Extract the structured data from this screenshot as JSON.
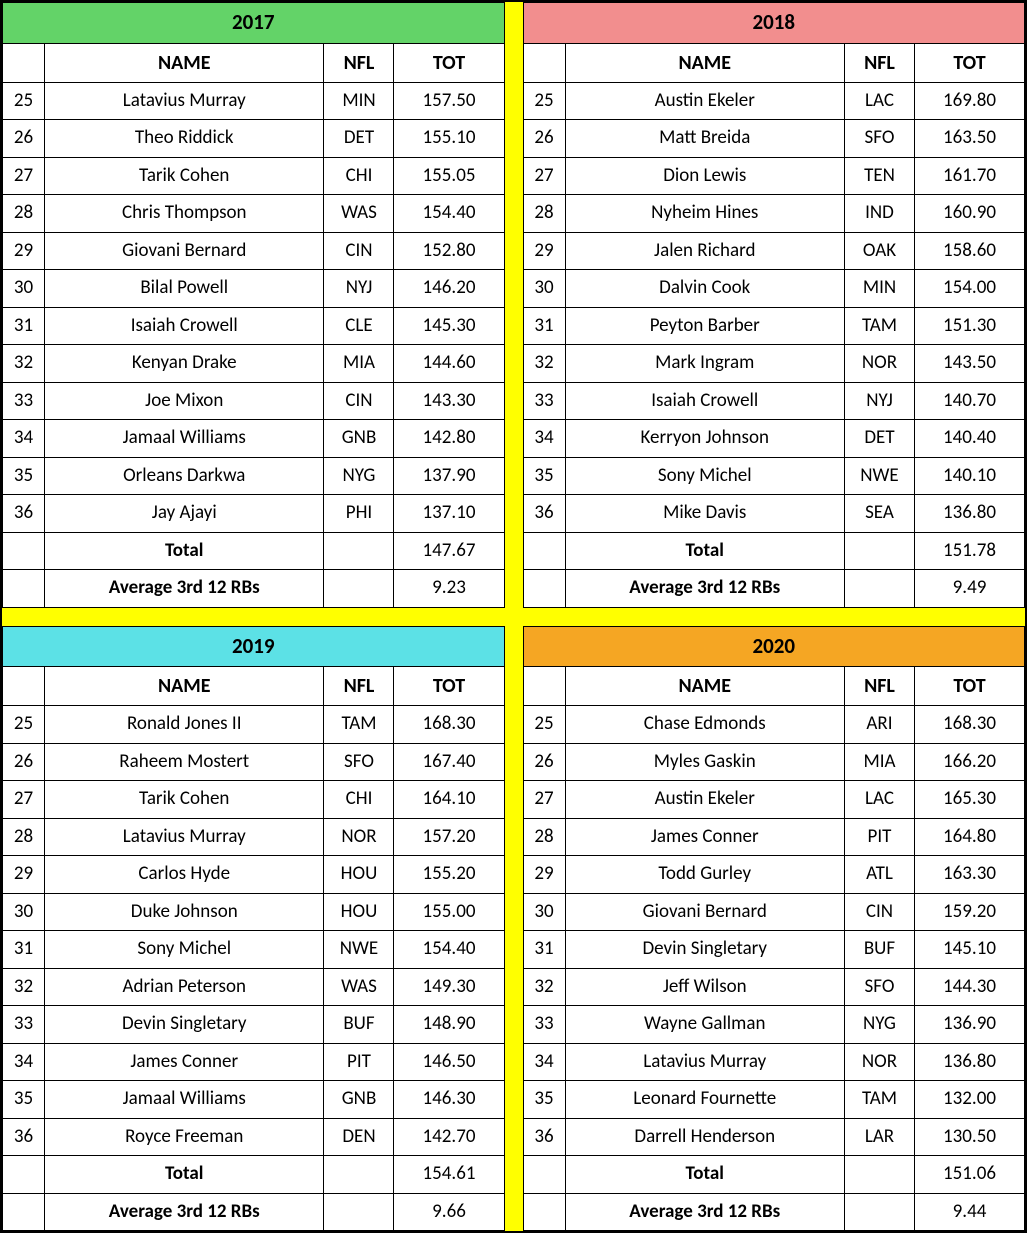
{
  "colors": {
    "gap": "#ffff00",
    "header_2017": "#63d368",
    "header_2018": "#f28e8e",
    "header_2019": "#5ce1e6",
    "header_2020": "#f5a623"
  },
  "labels": {
    "name": "NAME",
    "nfl": "NFL",
    "tot": "TOT",
    "total": "Total",
    "avg": "Average 3rd 12 RBs"
  },
  "panels": {
    "p2017": {
      "year": "2017",
      "rows": [
        {
          "rank": "25",
          "name": "Latavius Murray",
          "nfl": "MIN",
          "tot": "157.50"
        },
        {
          "rank": "26",
          "name": "Theo Riddick",
          "nfl": "DET",
          "tot": "155.10"
        },
        {
          "rank": "27",
          "name": "Tarik Cohen",
          "nfl": "CHI",
          "tot": "155.05"
        },
        {
          "rank": "28",
          "name": "Chris Thompson",
          "nfl": "WAS",
          "tot": "154.40"
        },
        {
          "rank": "29",
          "name": "Giovani Bernard",
          "nfl": "CIN",
          "tot": "152.80"
        },
        {
          "rank": "30",
          "name": "Bilal Powell",
          "nfl": "NYJ",
          "tot": "146.20"
        },
        {
          "rank": "31",
          "name": "Isaiah Crowell",
          "nfl": "CLE",
          "tot": "145.30"
        },
        {
          "rank": "32",
          "name": "Kenyan Drake",
          "nfl": "MIA",
          "tot": "144.60"
        },
        {
          "rank": "33",
          "name": "Joe Mixon",
          "nfl": "CIN",
          "tot": "143.30"
        },
        {
          "rank": "34",
          "name": "Jamaal Williams",
          "nfl": "GNB",
          "tot": "142.80"
        },
        {
          "rank": "35",
          "name": "Orleans Darkwa",
          "nfl": "NYG",
          "tot": "137.90"
        },
        {
          "rank": "36",
          "name": "Jay Ajayi",
          "nfl": "PHI",
          "tot": "137.10"
        }
      ],
      "total": "147.67",
      "avg": "9.23"
    },
    "p2018": {
      "year": "2018",
      "rows": [
        {
          "rank": "25",
          "name": "Austin Ekeler",
          "nfl": "LAC",
          "tot": "169.80"
        },
        {
          "rank": "26",
          "name": "Matt Breida",
          "nfl": "SFO",
          "tot": "163.50"
        },
        {
          "rank": "27",
          "name": "Dion Lewis",
          "nfl": "TEN",
          "tot": "161.70"
        },
        {
          "rank": "28",
          "name": "Nyheim Hines",
          "nfl": "IND",
          "tot": "160.90"
        },
        {
          "rank": "29",
          "name": "Jalen Richard",
          "nfl": "OAK",
          "tot": "158.60"
        },
        {
          "rank": "30",
          "name": "Dalvin Cook",
          "nfl": "MIN",
          "tot": "154.00"
        },
        {
          "rank": "31",
          "name": "Peyton Barber",
          "nfl": "TAM",
          "tot": "151.30"
        },
        {
          "rank": "32",
          "name": "Mark Ingram",
          "nfl": "NOR",
          "tot": "143.50"
        },
        {
          "rank": "33",
          "name": "Isaiah Crowell",
          "nfl": "NYJ",
          "tot": "140.70"
        },
        {
          "rank": "34",
          "name": "Kerryon Johnson",
          "nfl": "DET",
          "tot": "140.40"
        },
        {
          "rank": "35",
          "name": "Sony Michel",
          "nfl": "NWE",
          "tot": "140.10"
        },
        {
          "rank": "36",
          "name": "Mike Davis",
          "nfl": "SEA",
          "tot": "136.80"
        }
      ],
      "total": "151.78",
      "avg": "9.49"
    },
    "p2019": {
      "year": "2019",
      "rows": [
        {
          "rank": "25",
          "name": "Ronald Jones II",
          "nfl": "TAM",
          "tot": "168.30"
        },
        {
          "rank": "26",
          "name": "Raheem Mostert",
          "nfl": "SFO",
          "tot": "167.40"
        },
        {
          "rank": "27",
          "name": "Tarik Cohen",
          "nfl": "CHI",
          "tot": "164.10"
        },
        {
          "rank": "28",
          "name": "Latavius Murray",
          "nfl": "NOR",
          "tot": "157.20"
        },
        {
          "rank": "29",
          "name": "Carlos Hyde",
          "nfl": "HOU",
          "tot": "155.20"
        },
        {
          "rank": "30",
          "name": "Duke Johnson",
          "nfl": "HOU",
          "tot": "155.00"
        },
        {
          "rank": "31",
          "name": "Sony Michel",
          "nfl": "NWE",
          "tot": "154.40"
        },
        {
          "rank": "32",
          "name": "Adrian Peterson",
          "nfl": "WAS",
          "tot": "149.30"
        },
        {
          "rank": "33",
          "name": "Devin Singletary",
          "nfl": "BUF",
          "tot": "148.90"
        },
        {
          "rank": "34",
          "name": "James Conner",
          "nfl": "PIT",
          "tot": "146.50"
        },
        {
          "rank": "35",
          "name": "Jamaal Williams",
          "nfl": "GNB",
          "tot": "146.30"
        },
        {
          "rank": "36",
          "name": "Royce Freeman",
          "nfl": "DEN",
          "tot": "142.70"
        }
      ],
      "total": "154.61",
      "avg": "9.66"
    },
    "p2020": {
      "year": "2020",
      "rows": [
        {
          "rank": "25",
          "name": "Chase Edmonds",
          "nfl": "ARI",
          "tot": "168.30"
        },
        {
          "rank": "26",
          "name": "Myles Gaskin",
          "nfl": "MIA",
          "tot": "166.20"
        },
        {
          "rank": "27",
          "name": "Austin Ekeler",
          "nfl": "LAC",
          "tot": "165.30"
        },
        {
          "rank": "28",
          "name": "James Conner",
          "nfl": "PIT",
          "tot": "164.80"
        },
        {
          "rank": "29",
          "name": "Todd Gurley",
          "nfl": "ATL",
          "tot": "163.30"
        },
        {
          "rank": "30",
          "name": "Giovani Bernard",
          "nfl": "CIN",
          "tot": "159.20"
        },
        {
          "rank": "31",
          "name": "Devin Singletary",
          "nfl": "BUF",
          "tot": "145.10"
        },
        {
          "rank": "32",
          "name": "Jeff Wilson",
          "nfl": "SFO",
          "tot": "144.30"
        },
        {
          "rank": "33",
          "name": "Wayne Gallman",
          "nfl": "NYG",
          "tot": "136.90"
        },
        {
          "rank": "34",
          "name": "Latavius Murray",
          "nfl": "NOR",
          "tot": "136.80"
        },
        {
          "rank": "35",
          "name": "Leonard Fournette",
          "nfl": "TAM",
          "tot": "132.00"
        },
        {
          "rank": "36",
          "name": "Darrell Henderson",
          "nfl": "LAR",
          "tot": "130.50"
        }
      ],
      "total": "151.06",
      "avg": "9.44"
    }
  }
}
